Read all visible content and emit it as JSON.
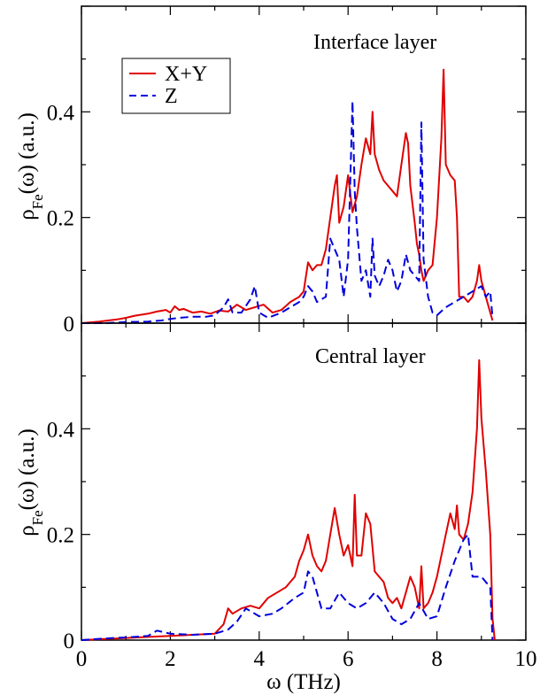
{
  "figure": {
    "xlabel": "ω (THz)",
    "ylabel_main": "ρ",
    "ylabel_sub": "Fe",
    "ylabel_tail": "(ω) (a.u.)",
    "xlim": [
      0,
      10
    ],
    "ylim": [
      0,
      0.6
    ],
    "xticks": [
      "0",
      "2",
      "4",
      "6",
      "8",
      "10"
    ],
    "yticks": [
      "0",
      "0.2",
      "0.4"
    ]
  },
  "legend": {
    "entries": [
      {
        "label": "X+Y",
        "color": "#e00000",
        "style": "solid"
      },
      {
        "label": "Z",
        "color": "#0000dd",
        "style": "dashed"
      }
    ]
  },
  "chart_data": [
    {
      "type": "line",
      "title": "Interface layer",
      "xlabel": "ω (THz)",
      "ylabel": "ρFe(ω) (a.u.)",
      "xlim": [
        0,
        10
      ],
      "ylim": [
        0,
        0.6
      ],
      "legend": "top-left",
      "series": [
        {
          "name": "X+Y",
          "color": "#e00000",
          "style": "solid",
          "x": [
            0.0,
            0.4,
            0.8,
            1.0,
            1.2,
            1.5,
            1.7,
            1.9,
            2.0,
            2.1,
            2.2,
            2.3,
            2.5,
            2.7,
            2.9,
            3.1,
            3.3,
            3.5,
            3.7,
            3.9,
            4.1,
            4.3,
            4.5,
            4.7,
            4.9,
            5.0,
            5.1,
            5.2,
            5.3,
            5.4,
            5.5,
            5.6,
            5.7,
            5.75,
            5.8,
            5.9,
            6.0,
            6.1,
            6.2,
            6.3,
            6.4,
            6.5,
            6.55,
            6.6,
            6.7,
            6.8,
            6.9,
            7.0,
            7.1,
            7.2,
            7.3,
            7.35,
            7.4,
            7.5,
            7.55,
            7.6,
            7.65,
            7.7,
            7.8,
            7.9,
            8.0,
            8.1,
            8.15,
            8.2,
            8.3,
            8.4,
            8.45,
            8.5,
            8.6,
            8.7,
            8.8,
            8.9,
            8.95,
            9.0,
            9.1,
            9.2,
            9.25
          ],
          "y": [
            0.0,
            0.003,
            0.007,
            0.01,
            0.014,
            0.018,
            0.022,
            0.025,
            0.02,
            0.032,
            0.025,
            0.027,
            0.02,
            0.022,
            0.018,
            0.024,
            0.022,
            0.035,
            0.025,
            0.03,
            0.035,
            0.02,
            0.025,
            0.04,
            0.05,
            0.06,
            0.115,
            0.1,
            0.11,
            0.11,
            0.14,
            0.2,
            0.26,
            0.28,
            0.19,
            0.22,
            0.28,
            0.21,
            0.24,
            0.3,
            0.35,
            0.32,
            0.4,
            0.32,
            0.29,
            0.27,
            0.26,
            0.25,
            0.24,
            0.3,
            0.36,
            0.34,
            0.26,
            0.19,
            0.15,
            0.13,
            0.1,
            0.08,
            0.1,
            0.11,
            0.2,
            0.35,
            0.48,
            0.3,
            0.28,
            0.27,
            0.2,
            0.05,
            0.05,
            0.04,
            0.05,
            0.08,
            0.11,
            0.08,
            0.05,
            0.02,
            0.005
          ]
        },
        {
          "name": "Z",
          "color": "#0000dd",
          "style": "dashed",
          "x": [
            0.0,
            0.5,
            1.0,
            1.5,
            1.8,
            2.0,
            2.2,
            2.5,
            2.8,
            3.0,
            3.2,
            3.3,
            3.4,
            3.6,
            3.8,
            3.9,
            4.0,
            4.2,
            4.5,
            4.7,
            4.9,
            5.0,
            5.1,
            5.2,
            5.3,
            5.5,
            5.6,
            5.7,
            5.8,
            5.9,
            6.0,
            6.1,
            6.15,
            6.2,
            6.3,
            6.4,
            6.5,
            6.55,
            6.6,
            6.7,
            6.8,
            6.9,
            7.0,
            7.1,
            7.2,
            7.3,
            7.4,
            7.5,
            7.6,
            7.65,
            7.7,
            7.8,
            7.9,
            8.0,
            8.2,
            8.4,
            8.6,
            8.8,
            9.0,
            9.1,
            9.2,
            9.25
          ],
          "y": [
            0.0,
            0.0,
            0.002,
            0.003,
            0.005,
            0.008,
            0.01,
            0.012,
            0.012,
            0.015,
            0.03,
            0.045,
            0.02,
            0.02,
            0.045,
            0.07,
            0.02,
            0.01,
            0.02,
            0.03,
            0.04,
            0.05,
            0.07,
            0.06,
            0.04,
            0.05,
            0.16,
            0.14,
            0.12,
            0.05,
            0.12,
            0.42,
            0.25,
            0.18,
            0.08,
            0.1,
            0.05,
            0.16,
            0.09,
            0.07,
            0.09,
            0.12,
            0.1,
            0.06,
            0.08,
            0.13,
            0.1,
            0.09,
            0.08,
            0.38,
            0.12,
            0.05,
            0.02,
            0.015,
            0.03,
            0.04,
            0.05,
            0.06,
            0.07,
            0.05,
            0.06,
            0.01
          ]
        }
      ]
    },
    {
      "type": "line",
      "title": "Central layer",
      "xlabel": "ω (THz)",
      "ylabel": "ρFe(ω) (a.u.)",
      "xlim": [
        0,
        10
      ],
      "ylim": [
        0,
        0.6
      ],
      "series": [
        {
          "name": "X+Y",
          "color": "#e00000",
          "style": "solid",
          "x": [
            0.0,
            0.5,
            1.0,
            1.5,
            2.0,
            2.5,
            3.0,
            3.2,
            3.3,
            3.4,
            3.5,
            3.6,
            3.8,
            4.0,
            4.2,
            4.4,
            4.6,
            4.7,
            4.8,
            4.9,
            5.0,
            5.1,
            5.2,
            5.3,
            5.4,
            5.5,
            5.6,
            5.7,
            5.8,
            5.9,
            6.0,
            6.1,
            6.15,
            6.2,
            6.3,
            6.4,
            6.5,
            6.6,
            6.7,
            6.8,
            6.9,
            7.0,
            7.1,
            7.2,
            7.3,
            7.4,
            7.5,
            7.6,
            7.65,
            7.7,
            7.8,
            7.9,
            8.0,
            8.1,
            8.2,
            8.3,
            8.4,
            8.45,
            8.5,
            8.6,
            8.7,
            8.8,
            8.9,
            8.95,
            9.0,
            9.1,
            9.2,
            9.25,
            9.3
          ],
          "y": [
            0.0,
            0.002,
            0.004,
            0.006,
            0.008,
            0.01,
            0.012,
            0.03,
            0.06,
            0.05,
            0.055,
            0.06,
            0.065,
            0.06,
            0.08,
            0.09,
            0.1,
            0.11,
            0.12,
            0.15,
            0.17,
            0.2,
            0.16,
            0.14,
            0.13,
            0.15,
            0.2,
            0.25,
            0.2,
            0.16,
            0.18,
            0.14,
            0.275,
            0.16,
            0.16,
            0.24,
            0.22,
            0.13,
            0.12,
            0.11,
            0.08,
            0.07,
            0.08,
            0.06,
            0.09,
            0.12,
            0.1,
            0.06,
            0.14,
            0.06,
            0.07,
            0.09,
            0.12,
            0.16,
            0.2,
            0.24,
            0.21,
            0.255,
            0.2,
            0.19,
            0.22,
            0.28,
            0.4,
            0.53,
            0.42,
            0.32,
            0.2,
            0.04,
            0.0
          ]
        },
        {
          "name": "Z",
          "color": "#0000dd",
          "style": "dashed",
          "x": [
            0.0,
            0.5,
            1.0,
            1.5,
            1.7,
            2.0,
            2.5,
            3.0,
            3.3,
            3.5,
            3.7,
            4.0,
            4.3,
            4.5,
            4.8,
            5.0,
            5.1,
            5.2,
            5.4,
            5.6,
            5.8,
            6.0,
            6.2,
            6.4,
            6.6,
            6.8,
            7.0,
            7.2,
            7.4,
            7.6,
            7.8,
            8.0,
            8.2,
            8.4,
            8.5,
            8.6,
            8.7,
            8.8,
            9.0,
            9.2,
            9.25
          ],
          "y": [
            0.0,
            0.003,
            0.005,
            0.008,
            0.018,
            0.012,
            0.01,
            0.012,
            0.02,
            0.035,
            0.06,
            0.045,
            0.05,
            0.06,
            0.08,
            0.09,
            0.13,
            0.12,
            0.06,
            0.06,
            0.09,
            0.07,
            0.06,
            0.07,
            0.09,
            0.07,
            0.04,
            0.03,
            0.04,
            0.07,
            0.04,
            0.045,
            0.1,
            0.15,
            0.17,
            0.19,
            0.2,
            0.12,
            0.12,
            0.1,
            0.0
          ]
        }
      ]
    }
  ]
}
